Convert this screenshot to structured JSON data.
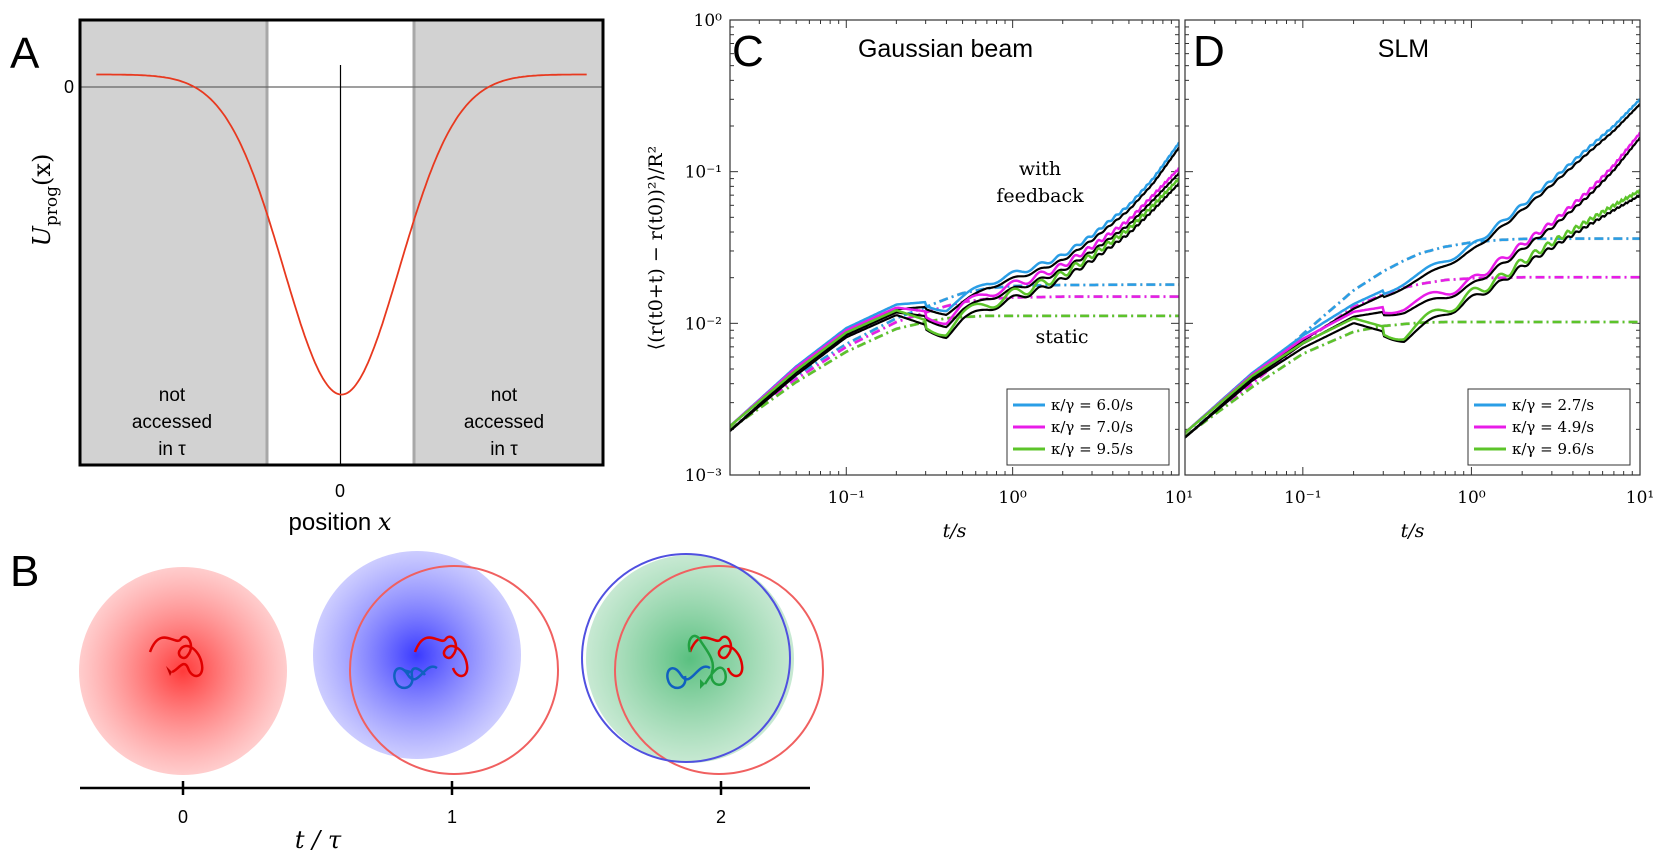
{
  "panel_labels": {
    "a": "A",
    "b": "B",
    "c": "C",
    "d": "D"
  },
  "panel_a": {
    "zero_y_label": "0",
    "zero_x_label": "0",
    "ylabel": "U",
    "ylabel_sub": "prog",
    "ylabel_arg": "(x)",
    "xlabel_text": "position ",
    "xlabel_var": "x",
    "left_region": {
      "line1": "not",
      "line2": "accessed",
      "line3": "in τ"
    },
    "right_region": {
      "line1": "not",
      "line2": "accessed",
      "line3": "in τ"
    }
  },
  "panel_b": {
    "ticks": [
      "0",
      "1",
      "2"
    ],
    "xlabel": "t / τ"
  },
  "chart_data": [
    {
      "type": "line",
      "panel": "A",
      "title": "",
      "xlabel": "position x",
      "ylabel": "U_prog(x)",
      "x": [
        -3,
        -2.5,
        -2,
        -1.5,
        -1,
        -0.75,
        -0.5,
        -0.25,
        0,
        0.25,
        0.5,
        0.75,
        1,
        1.5,
        2,
        2.5,
        3
      ],
      "series": [
        {
          "name": "U_prog",
          "color": "#e8391f",
          "values": [
            0,
            -0.0019,
            -0.018,
            -0.105,
            -0.368,
            -0.57,
            -0.779,
            -0.939,
            -1,
            -0.939,
            -0.779,
            -0.57,
            -0.368,
            -0.105,
            -0.018,
            -0.0019,
            0
          ]
        }
      ],
      "regions": {
        "accessed_from": -1,
        "accessed_to": 1
      },
      "xlim": [
        -3.2,
        3.2
      ],
      "ylim": [
        -1.22,
        0.17
      ]
    },
    {
      "type": "line",
      "panel": "C",
      "title": "Gaussian beam",
      "xlabel": "t/s",
      "ylabel": "⟨(r(t0+t) − r(t0))²⟩/R²",
      "xscale": "log",
      "yscale": "log",
      "xlim": [
        0.02,
        10
      ],
      "ylim": [
        0.001,
        1
      ],
      "x_ticks": [
        "10⁻¹",
        "10⁰",
        "10¹"
      ],
      "y_ticks": [
        "10⁻³",
        "10⁻²",
        "10⁻¹",
        "10⁰"
      ],
      "annotations": {
        "feedback_1": "with",
        "feedback_2": "feedback",
        "static": "static"
      },
      "x": [
        0.02,
        0.05,
        0.1,
        0.2,
        0.3,
        0.4,
        0.5,
        0.7,
        1,
        1.5,
        2,
        3,
        5,
        7,
        10
      ],
      "series": [
        {
          "name": "κ/γ = 6.0/s",
          "legend": "κ/γ = 6.0/s",
          "color": "#2a9ee6",
          "values": [
            0.0021,
            0.0052,
            0.0093,
            0.0133,
            0.0138,
            0.0125,
            0.0145,
            0.0185,
            0.021,
            0.0245,
            0.028,
            0.038,
            0.06,
            0.09,
            0.155
          ]
        },
        {
          "name": "κ/γ = 7.0/s",
          "legend": "κ/γ = 7.0/s",
          "color": "#e81ce8",
          "values": [
            0.0021,
            0.0051,
            0.009,
            0.0127,
            0.012,
            0.0105,
            0.0128,
            0.0158,
            0.0178,
            0.021,
            0.024,
            0.032,
            0.048,
            0.07,
            0.105
          ]
        },
        {
          "name": "κ/γ = 9.5/s",
          "legend": "κ/γ = 9.5/s",
          "color": "#5cc42a",
          "values": [
            0.0021,
            0.0049,
            0.0087,
            0.0122,
            0.0105,
            0.009,
            0.011,
            0.0135,
            0.0155,
            0.0182,
            0.021,
            0.028,
            0.042,
            0.06,
            0.09
          ]
        },
        {
          "name": "κ/γ = 6.0/s static",
          "legend": "",
          "color": "#2a9ee6",
          "style": "dash-dot",
          "values": [
            0.002,
            0.0045,
            0.0073,
            0.0108,
            0.0128,
            0.0145,
            0.0158,
            0.017,
            0.0176,
            0.0178,
            0.0179,
            0.0179,
            0.018,
            0.018,
            0.018
          ]
        },
        {
          "name": "κ/γ = 7.0/s static",
          "legend": "",
          "color": "#e81ce8",
          "style": "dash-dot",
          "values": [
            0.002,
            0.0043,
            0.007,
            0.0102,
            0.0118,
            0.013,
            0.0138,
            0.0145,
            0.0148,
            0.0149,
            0.015,
            0.015,
            0.015,
            0.015,
            0.015
          ]
        },
        {
          "name": "κ/γ = 9.5/s static",
          "legend": "",
          "color": "#5cc42a",
          "style": "dash-dot",
          "values": [
            0.002,
            0.0041,
            0.0065,
            0.0092,
            0.0102,
            0.0108,
            0.011,
            0.0112,
            0.0112,
            0.0112,
            0.0112,
            0.0112,
            0.0112,
            0.0112,
            0.0112
          ]
        }
      ]
    },
    {
      "type": "line",
      "panel": "D",
      "title": "SLM",
      "xlabel": "t/s",
      "ylabel": "",
      "xscale": "log",
      "yscale": "log",
      "xlim": [
        0.02,
        10
      ],
      "ylim": [
        0.001,
        1
      ],
      "x_ticks": [
        "10⁻¹",
        "10⁰",
        "10¹"
      ],
      "x": [
        0.02,
        0.05,
        0.1,
        0.2,
        0.3,
        0.4,
        0.5,
        0.7,
        1,
        1.5,
        2,
        3,
        5,
        7,
        10
      ],
      "series": [
        {
          "name": "κ/γ = 2.7/s",
          "legend": "κ/γ = 2.7/s",
          "color": "#2a9ee6",
          "values": [
            0.0019,
            0.0047,
            0.0083,
            0.0134,
            0.0165,
            0.0188,
            0.021,
            0.026,
            0.032,
            0.046,
            0.06,
            0.088,
            0.145,
            0.2,
            0.3
          ]
        },
        {
          "name": "κ/γ = 4.9/s",
          "legend": "κ/γ = 4.9/s",
          "color": "#e81ce8",
          "values": [
            0.0019,
            0.0046,
            0.0079,
            0.0119,
            0.0128,
            0.013,
            0.014,
            0.016,
            0.019,
            0.026,
            0.033,
            0.046,
            0.075,
            0.11,
            0.18
          ]
        },
        {
          "name": "κ/γ = 9.6/s",
          "legend": "κ/γ = 9.6/s",
          "color": "#5cc42a",
          "values": [
            0.0019,
            0.0045,
            0.0074,
            0.0108,
            0.0095,
            0.0085,
            0.0098,
            0.0125,
            0.0155,
            0.02,
            0.0255,
            0.034,
            0.048,
            0.06,
            0.075
          ]
        },
        {
          "name": "κ/γ = 2.7/s static",
          "legend": "",
          "color": "#2a9ee6",
          "style": "dash-dot",
          "values": [
            0.0018,
            0.0042,
            0.0085,
            0.0165,
            0.022,
            0.026,
            0.029,
            0.032,
            0.0342,
            0.0355,
            0.036,
            0.0362,
            0.0362,
            0.0362,
            0.0362
          ]
        },
        {
          "name": "κ/γ = 4.9/s static",
          "legend": "",
          "color": "#e81ce8",
          "style": "dash-dot",
          "values": [
            0.0018,
            0.004,
            0.0075,
            0.0128,
            0.0155,
            0.0172,
            0.0182,
            0.0193,
            0.0198,
            0.02,
            0.0201,
            0.0201,
            0.0201,
            0.0201,
            0.0201
          ]
        },
        {
          "name": "κ/γ = 9.6/s static",
          "legend": "",
          "color": "#5cc42a",
          "style": "dash-dot",
          "values": [
            0.0018,
            0.0038,
            0.0063,
            0.0088,
            0.0096,
            0.0099,
            0.0101,
            0.0102,
            0.0102,
            0.0102,
            0.0102,
            0.0102,
            0.0102,
            0.0102,
            0.0102
          ]
        }
      ]
    }
  ]
}
